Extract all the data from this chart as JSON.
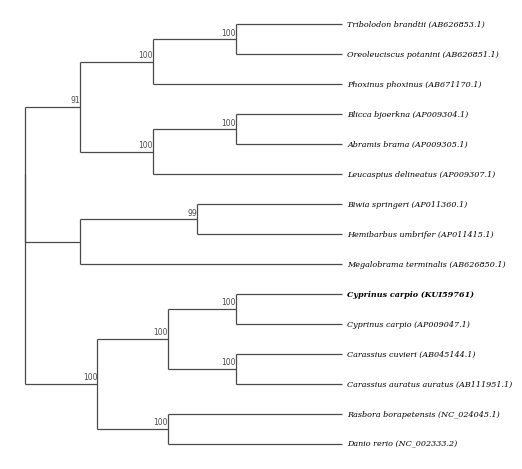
{
  "taxa": [
    {
      "name": "Tribolodon brandtii (AB626853.1)",
      "y": 14,
      "bold": false
    },
    {
      "name": "Oreoleuciscus potanini (AB626851.1)",
      "y": 13,
      "bold": false
    },
    {
      "name": "Phoxinus phoxinus (AB671170.1)",
      "y": 12,
      "bold": false
    },
    {
      "name": "Blicca bjoerkna (AP009304.1)",
      "y": 11,
      "bold": false
    },
    {
      "name": "Abramis brama (AP009305.1)",
      "y": 10,
      "bold": false
    },
    {
      "name": "Leucaspius delineatus (AP009307.1)",
      "y": 9,
      "bold": false
    },
    {
      "name": "Biwia springeri (AP011360.1)",
      "y": 8,
      "bold": false
    },
    {
      "name": "Hemibarbus umbrifer (AP011415.1)",
      "y": 7,
      "bold": false
    },
    {
      "name": "Megalobrama terminalis (AB626850.1)",
      "y": 6,
      "bold": false
    },
    {
      "name": "Cyprinus carpio (KUI59761)",
      "y": 5,
      "bold": true
    },
    {
      "name": "Cyprinus carpio (AP009047.1)",
      "y": 4,
      "bold": false
    },
    {
      "name": "Carassius cuvieri (AB045144.1)",
      "y": 3,
      "bold": false
    },
    {
      "name": "Carassius auratus auratus (AB111951.1)",
      "y": 2,
      "bold": false
    },
    {
      "name": "Rasbora borapetensis (NC_024045.1)",
      "y": 1,
      "bold": false
    },
    {
      "name": "Danio rerio (NC_002333.2)",
      "y": 0,
      "bold": false
    }
  ],
  "line_color": "#4a4a4a",
  "text_color": "#000000",
  "background_color": "#ffffff",
  "fontsize": 5.8,
  "bootstrap_fontsize": 5.5,
  "xlim": [
    0,
    11.5
  ],
  "ylim": [
    -0.5,
    14.5
  ]
}
